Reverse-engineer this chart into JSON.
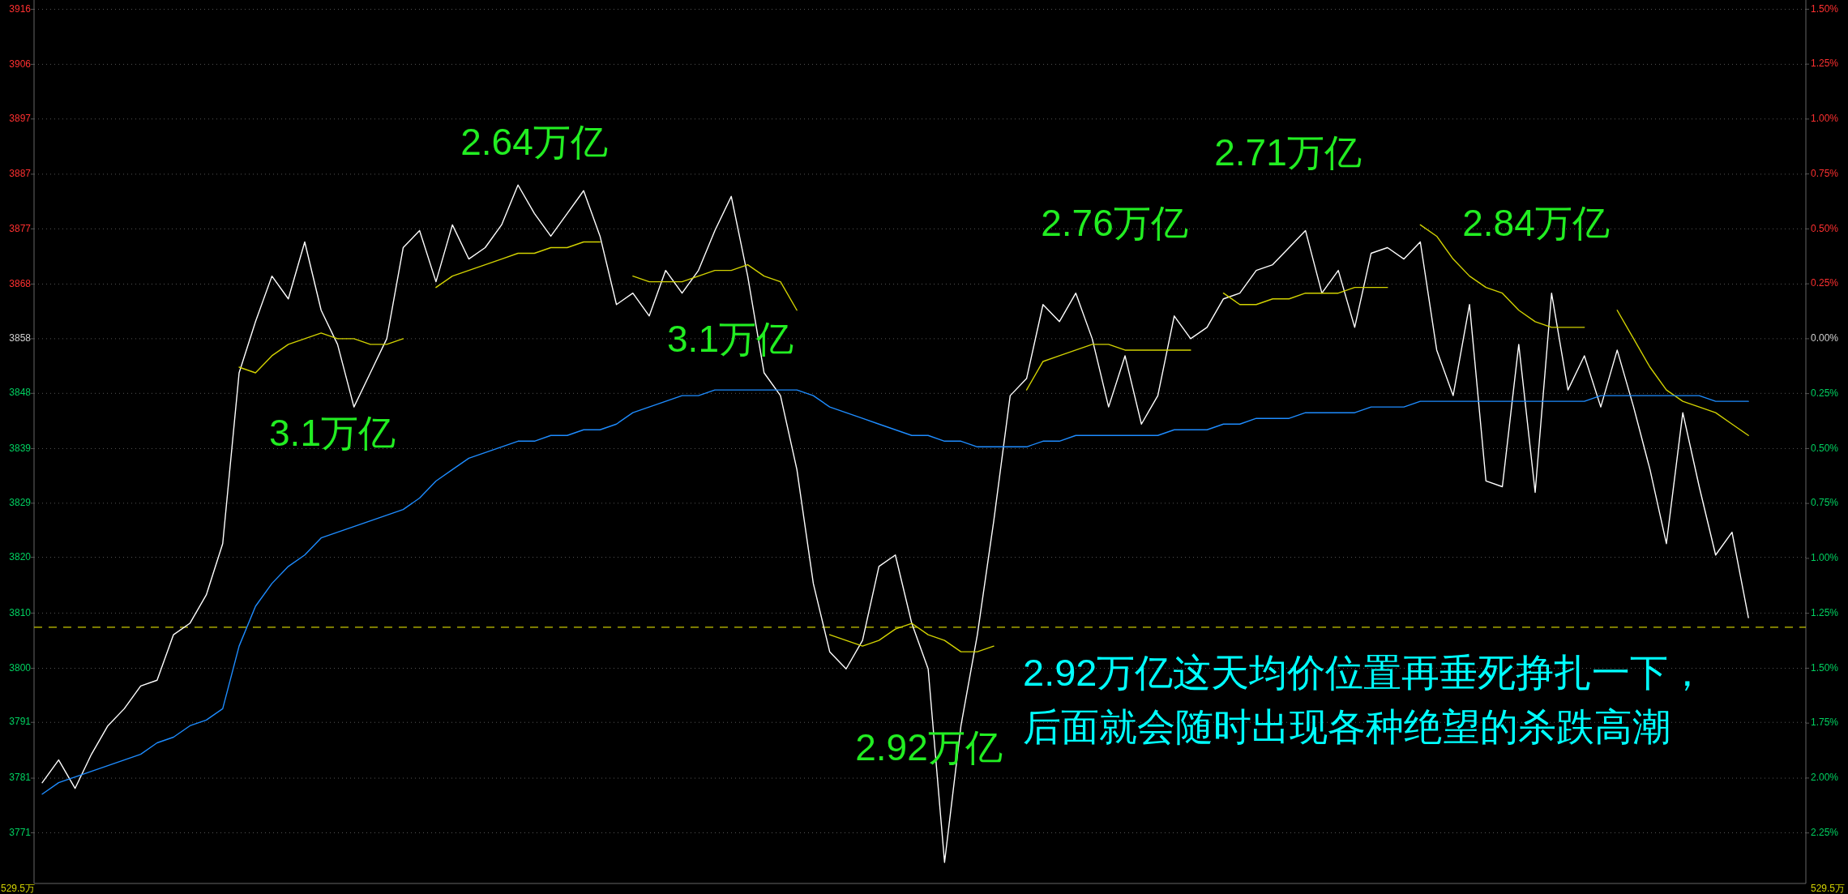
{
  "chart_data": {
    "type": "line",
    "categories": [
      null,
      null,
      null,
      null,
      null,
      null,
      null,
      null,
      null,
      null,
      null,
      null,
      null,
      null,
      null,
      null,
      null,
      null,
      null,
      null,
      null,
      null,
      null,
      null,
      null,
      null,
      null,
      null,
      null,
      null,
      null,
      null,
      null,
      null,
      null,
      null,
      null,
      null,
      null,
      null,
      null,
      null,
      null,
      null,
      null,
      null,
      null,
      null,
      null,
      null,
      null,
      null,
      null,
      null,
      null,
      null,
      null,
      null,
      null,
      null,
      null,
      null,
      null,
      null,
      null,
      null,
      null,
      null,
      null,
      null,
      null,
      null,
      null,
      null,
      null,
      null,
      null,
      null,
      null,
      null,
      null,
      null,
      null,
      null,
      null,
      null,
      null,
      null,
      null,
      null,
      null,
      null,
      null,
      null,
      null,
      null,
      null,
      null,
      null,
      null,
      null,
      null,
      null,
      null,
      null,
      null,
      null,
      null
    ],
    "ylim": [
      3762.3,
      3917.5
    ],
    "yticks": [
      {
        "value": 3915.87,
        "label": "3916"
      },
      {
        "value": 3906.2,
        "label": "3906"
      },
      {
        "value": 3896.6,
        "label": "3897"
      },
      {
        "value": 3886.9,
        "label": "3887"
      },
      {
        "value": 3877.3,
        "label": "3877"
      },
      {
        "value": 3867.6,
        "label": "3868"
      },
      {
        "value": 3858,
        "label": "3858"
      },
      {
        "value": 3848.4,
        "label": "3848"
      },
      {
        "value": 3838.7,
        "label": "3839"
      },
      {
        "value": 3829.1,
        "label": "3829"
      },
      {
        "value": 3819.6,
        "label": "3820"
      },
      {
        "value": 3809.8,
        "label": "3810"
      },
      {
        "value": 3800.1,
        "label": "3800"
      },
      {
        "value": 3790.6,
        "label": "3791"
      },
      {
        "value": 3780.8,
        "label": "3781"
      },
      {
        "value": 3771.2,
        "label": "3771"
      }
    ],
    "y2lim": [
      -2.48,
      1.542
    ],
    "y2ticks": [
      {
        "value": 1.5,
        "label": "1.50%"
      },
      {
        "value": 1.25,
        "label": "1.25%"
      },
      {
        "value": 1.0,
        "label": "1.00%"
      },
      {
        "value": 0.75,
        "label": "0.75%"
      },
      {
        "value": 0.5,
        "label": "0.50%"
      },
      {
        "value": 0.25,
        "label": "0.25%"
      },
      {
        "value": 0,
        "label": "0.00%"
      },
      {
        "value": -0.25,
        "label": "0.25%"
      },
      {
        "value": -0.5,
        "label": "0.50%"
      },
      {
        "value": -0.75,
        "label": "0.75%"
      },
      {
        "value": -1.0,
        "label": "1.00%"
      },
      {
        "value": -1.25,
        "label": "1.25%"
      },
      {
        "value": -1.5,
        "label": "1.50%"
      },
      {
        "value": -1.75,
        "label": "1.75%"
      },
      {
        "value": -2.0,
        "label": "2.00%"
      },
      {
        "value": -2.25,
        "label": "2.25%"
      }
    ],
    "tick_labels": "y",
    "grid": "y",
    "series": [
      {
        "color": "#ffffff",
        "values": [
          3780,
          3784,
          3779,
          3785,
          3790,
          3793,
          3797,
          3798,
          3806,
          3808,
          3813,
          3822,
          3852,
          3861,
          3869,
          3865,
          3875,
          3863,
          3857,
          3846,
          3852,
          3858,
          3874,
          3877,
          3868,
          3878,
          3872,
          3874,
          3878,
          3885,
          3880,
          3876,
          3880,
          3884,
          3876,
          3864,
          3866,
          3862,
          3870,
          3866,
          3870,
          3877,
          3883,
          3869,
          3852,
          3848,
          3835,
          3815,
          3803,
          3800,
          3805,
          3818,
          3820,
          3808,
          3800,
          3766,
          3790,
          3806,
          3826,
          3848,
          3851,
          3864,
          3861,
          3866,
          3858,
          3846,
          3855,
          3843,
          3848,
          3862,
          3858,
          3860,
          3865,
          3866,
          3870,
          3871,
          3874,
          3877,
          3866,
          3870,
          3860,
          3873,
          3874,
          3872,
          3875,
          3856,
          3848,
          3864,
          3833,
          3832,
          3857,
          3831,
          3866,
          3849,
          3855,
          3846,
          3856,
          3846,
          3835,
          3822,
          3845,
          3832,
          3820,
          3824,
          3809,
          null,
          null,
          null
        ]
      },
      {
        "color": "#d2d200",
        "values": [
          null,
          null,
          null,
          null,
          null,
          null,
          null,
          null,
          null,
          null,
          null,
          null,
          3853,
          3852,
          3855,
          3857,
          3858,
          3859,
          3858,
          3858,
          3857,
          3857,
          3858,
          null,
          3867,
          3869,
          3870,
          3871,
          3872,
          3873,
          3873,
          3874,
          3874,
          3875,
          3875,
          null,
          3869,
          3868,
          3868,
          3868,
          3869,
          3870,
          3870,
          3871,
          3869,
          3868,
          3863,
          null,
          3806,
          3805,
          3804,
          3805,
          3807,
          3808,
          3806,
          3805,
          3803,
          3803,
          3804,
          null,
          3849,
          3854,
          3855,
          3856,
          3857,
          3857,
          3856,
          3856,
          3856,
          3856,
          3856,
          null,
          3866,
          3864,
          3864,
          3865,
          3865,
          3866,
          3866,
          3866,
          3867,
          3867,
          3867,
          null,
          3878,
          3876,
          3872,
          3869,
          3867,
          3866,
          3863,
          3861,
          3860,
          3860,
          3860,
          null,
          3863,
          3858,
          3853,
          3849,
          3847,
          3846,
          3845,
          3843,
          3841,
          null,
          null,
          null
        ]
      },
      {
        "color": "#1e8cff",
        "values": [
          3778,
          3780,
          3781,
          3782,
          3783,
          3784,
          3785,
          3787,
          3788,
          3790,
          3791,
          3793,
          3804,
          3811,
          3815,
          3818,
          3820,
          3823,
          3824,
          3825,
          3826,
          3827,
          3828,
          3830,
          3833,
          3835,
          3837,
          3838,
          3839,
          3840,
          3840,
          3841,
          3841,
          3842,
          3842,
          3843,
          3845,
          3846,
          3847,
          3848,
          3848,
          3849,
          3849,
          3849,
          3849,
          3849,
          3849,
          3848,
          3846,
          3845,
          3844,
          3843,
          3842,
          3841,
          3841,
          3840,
          3840,
          3839,
          3839,
          3839,
          3839,
          3840,
          3840,
          3841,
          3841,
          3841,
          3841,
          3841,
          3841,
          3842,
          3842,
          3842,
          3843,
          3843,
          3844,
          3844,
          3844,
          3845,
          3845,
          3845,
          3845,
          3846,
          3846,
          3846,
          3847,
          3847,
          3847,
          3847,
          3847,
          3847,
          3847,
          3847,
          3847,
          3847,
          3847,
          3848,
          3848,
          3848,
          3848,
          3848,
          3848,
          3848,
          3847,
          3847,
          3847,
          null,
          null,
          null
        ]
      }
    ],
    "ref_lines": [
      {
        "axis": "y",
        "value": 3807.3,
        "color": "#c8c800",
        "line_style": "dashed",
        "label": "2.92万亿这天均价位置再垂死挣扎一下，后面就会随时出现各种绝望的杀跌高潮"
      }
    ],
    "annotations": [
      "3.1万亿",
      "2.64万亿",
      "3.1万亿",
      "2.92万亿",
      "2.76万亿",
      "2.71万亿",
      "2.84万亿",
      "529.5万",
      "529.5万"
    ]
  }
}
